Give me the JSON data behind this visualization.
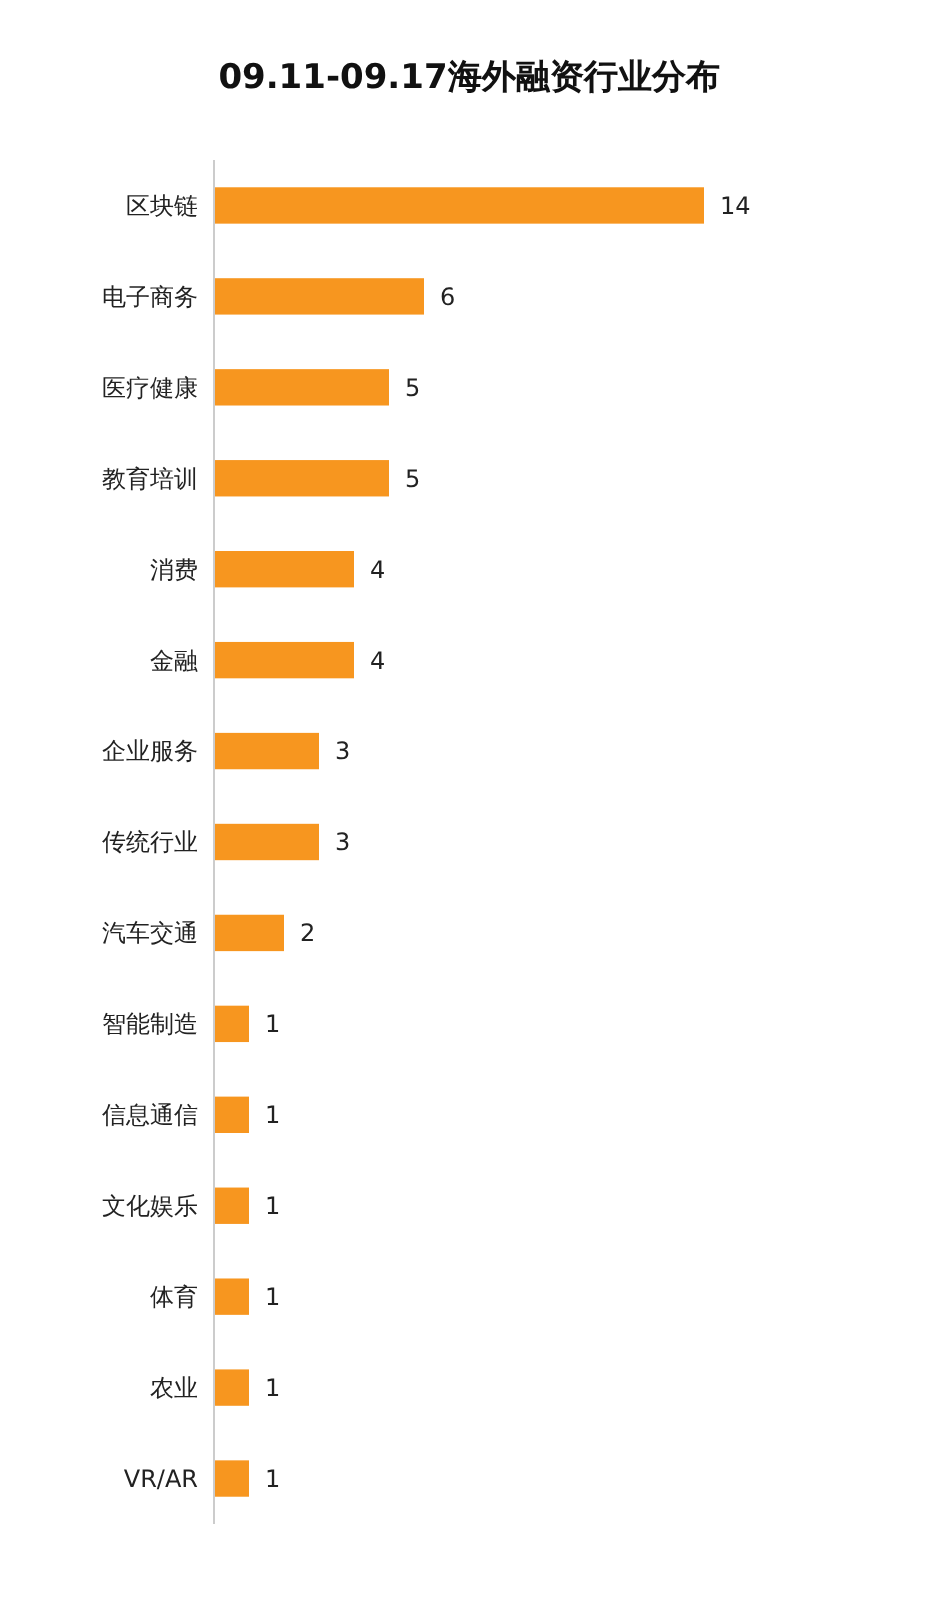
{
  "chart_data": {
    "type": "bar",
    "orientation": "horizontal",
    "title": "09.11-09.17海外融资行业分布",
    "categories": [
      "区块链",
      "电子商务",
      "医疗健康",
      "教育培训",
      "消费",
      "金融",
      "企业服务",
      "传统行业",
      "汽车交通",
      "智能制造",
      "信息通信",
      "文化娱乐",
      "体育",
      "农业",
      "VR/AR"
    ],
    "values": [
      14,
      6,
      5,
      5,
      4,
      4,
      3,
      3,
      2,
      1,
      1,
      1,
      1,
      1,
      1
    ],
    "color": "#f7961f",
    "data_labels": true
  }
}
